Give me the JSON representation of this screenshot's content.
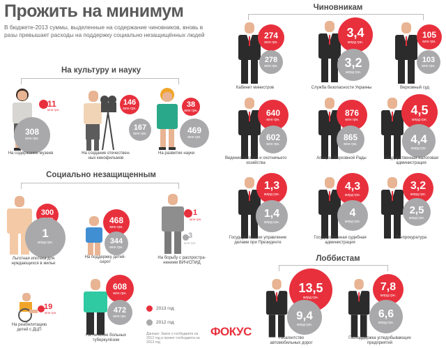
{
  "header": {
    "title": "Прожить на минимум",
    "subtitle": "В бюджете-2013 суммы, выделенные на содержание чиновников, вновь в разы превышает расходы на поддержку социально незащищённых людей"
  },
  "sections": {
    "culture": "На культуру и науку",
    "social": "Социально незащищенным",
    "officials": "Чиновникам",
    "lobby": "Лоббистам"
  },
  "units": {
    "mln": "млн грн.",
    "mlrd": "млрд грн."
  },
  "items": {
    "museums": {
      "red": "11",
      "gray": "308",
      "caption": "На содержание музеев"
    },
    "films": {
      "red": "146",
      "gray": "167",
      "caption": "На создание отечествен-ных кинофильмов"
    },
    "science": {
      "red": "38",
      "gray": "469",
      "caption": "На развитие науки"
    },
    "mortgage": {
      "red": "300",
      "gray": "1",
      "caption": "Льготная ипотека для нуждающихся в жилье"
    },
    "orphans": {
      "red": "468",
      "gray": "344",
      "caption": "На поддержку детей-сирот"
    },
    "hiv": {
      "red": "1",
      "gray": "3",
      "caption": "На борьбу с распростра-нением ВИЧ/СПИД"
    },
    "dcp": {
      "red": "19",
      "caption": "На реабилитацию детей с ДЦП"
    },
    "tb": {
      "red": "608",
      "gray": "472",
      "caption": "На лечение больных туберкулёзом"
    },
    "cabinet": {
      "red": "274",
      "gray": "278",
      "caption": "Кабинет министров"
    },
    "sbu": {
      "red": "3,4",
      "gray": "3,2",
      "caption": "Служба безопасности Украины"
    },
    "court": {
      "red": "105",
      "gray": "103",
      "caption": "Верховный суд"
    },
    "forest": {
      "red": "640",
      "gray": "602",
      "caption": "Ведение лесного и охотничьего хозяйства"
    },
    "rada": {
      "red": "876",
      "gray": "865",
      "caption": "Аппарат Верховной Рады"
    },
    "tax": {
      "red": "4,5",
      "gray": "4,4",
      "caption": "Государственная налоговая администрация"
    },
    "president": {
      "red": "1,3",
      "gray": "1,4",
      "caption": "Государственное управление делами при Президенте"
    },
    "judicial": {
      "red": "4,3",
      "gray": "4",
      "caption": "Государственная судебная администрация"
    },
    "prosecutor": {
      "red": "3,2",
      "gray": "2,5",
      "caption": "Генпрокуратура"
    },
    "roads": {
      "red": "13,5",
      "gray": "9,4",
      "caption": "Госагентство автомобильных дорог"
    },
    "farms": {
      "red": "7,8",
      "gray": "6,6",
      "caption": "Господдержка угледобывающих предприятий"
    }
  },
  "legend": {
    "y2013": "2013 год",
    "y2012": "2012 год",
    "color_2013": "#e8303d",
    "color_2012": "#a9a9ab"
  },
  "note": "Данные: Закон о госбюджете на 2012 год и проект госбюджета на 2013 год",
  "logo": "ФОКУС"
}
